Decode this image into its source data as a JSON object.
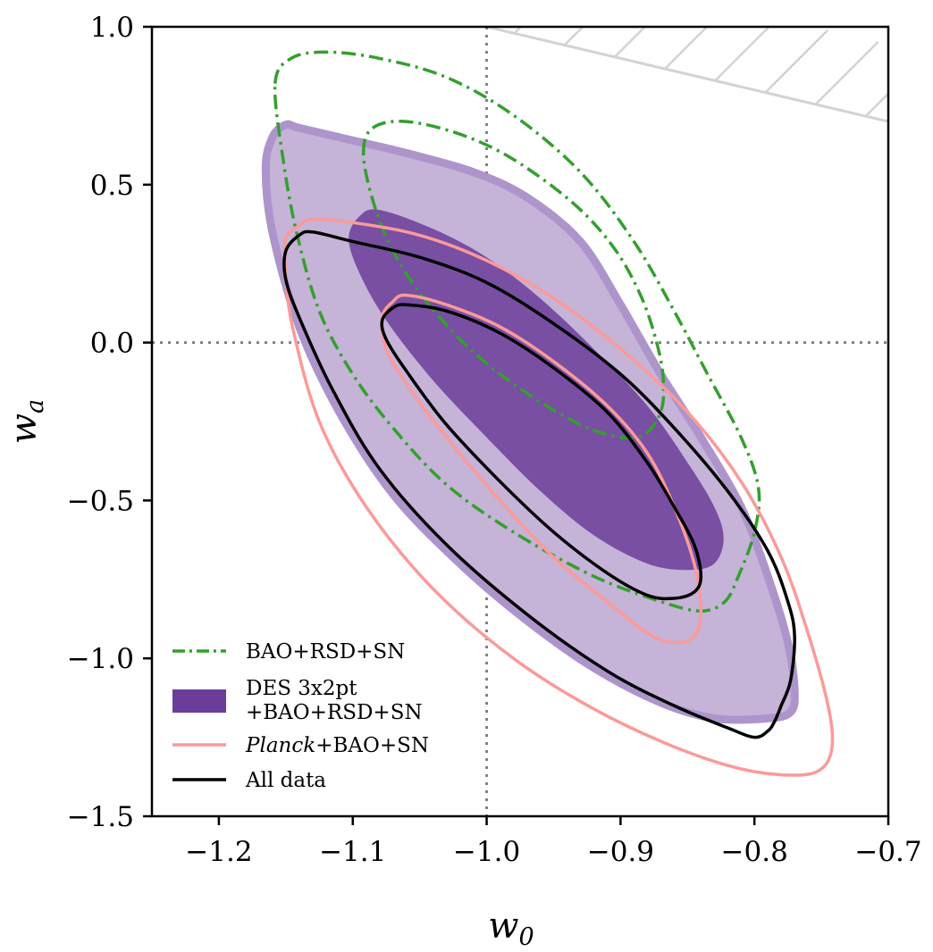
{
  "chart_data": {
    "type": "contour",
    "xlabel": "w0",
    "ylabel": "wa",
    "xlim": [
      -1.25,
      -0.7
    ],
    "ylim": [
      -1.5,
      1.0
    ],
    "xticks": [
      "−1.2",
      "−1.1",
      "−1.0",
      "−0.9",
      "−0.8",
      "−0.7"
    ],
    "yticks": [
      "1.0",
      "0.5",
      "0.0",
      "−0.5",
      "−1.0",
      "−1.5"
    ],
    "xtick_values": [
      -1.2,
      -1.1,
      -1.0,
      -0.9,
      -0.8,
      -0.7
    ],
    "ytick_values": [
      1.0,
      0.5,
      0.0,
      -0.5,
      -1.0,
      -1.5
    ],
    "reference_lines": {
      "w0": -1.0,
      "wa": 0.0,
      "style": "dotted",
      "color": "#808080"
    },
    "excluded_region": {
      "description": "hatched region, w0 + wa > 0",
      "line_from": [
        -1.0,
        1.0
      ],
      "line_to": [
        -0.7,
        0.7
      ],
      "color": "#d3d3d3"
    },
    "legend_position": "lower-left",
    "series": [
      {
        "name": "BAO+RSD+SN",
        "style": "dash-dot",
        "color": "#33a02c",
        "contours": {
          "outer_95": [
            [
              -1.158,
              0.82
            ],
            [
              -1.146,
              0.9
            ],
            [
              -1.12,
              0.92
            ],
            [
              -1.08,
              0.9
            ],
            [
              -1.03,
              0.84
            ],
            [
              -0.98,
              0.72
            ],
            [
              -0.93,
              0.54
            ],
            [
              -0.89,
              0.32
            ],
            [
              -0.86,
              0.1
            ],
            [
              -0.835,
              -0.1
            ],
            [
              -0.81,
              -0.3
            ],
            [
              -0.797,
              -0.46
            ],
            [
              -0.8,
              -0.6
            ],
            [
              -0.812,
              -0.74
            ],
            [
              -0.822,
              -0.82
            ],
            [
              -0.84,
              -0.85
            ],
            [
              -0.87,
              -0.82
            ],
            [
              -0.92,
              -0.74
            ],
            [
              -0.98,
              -0.6
            ],
            [
              -1.03,
              -0.45
            ],
            [
              -1.07,
              -0.27
            ],
            [
              -1.1,
              -0.1
            ],
            [
              -1.125,
              0.1
            ],
            [
              -1.142,
              0.35
            ],
            [
              -1.152,
              0.58
            ]
          ],
          "inner_68": [
            [
              -1.092,
              0.6
            ],
            [
              -1.085,
              0.68
            ],
            [
              -1.06,
              0.7
            ],
            [
              -1.02,
              0.66
            ],
            [
              -0.98,
              0.58
            ],
            [
              -0.935,
              0.44
            ],
            [
              -0.905,
              0.3
            ],
            [
              -0.885,
              0.15
            ],
            [
              -0.873,
              0.0
            ],
            [
              -0.868,
              -0.12
            ],
            [
              -0.87,
              -0.22
            ],
            [
              -0.882,
              -0.29
            ],
            [
              -0.9,
              -0.3
            ],
            [
              -0.93,
              -0.26
            ],
            [
              -0.97,
              -0.16
            ],
            [
              -1.01,
              -0.03
            ],
            [
              -1.045,
              0.13
            ],
            [
              -1.07,
              0.29
            ],
            [
              -1.085,
              0.45
            ]
          ]
        }
      },
      {
        "name": "DES 3x2pt +BAO+RSD+SN",
        "legend_lines": [
          "DES 3x2pt",
          "+BAO+RSD+SN"
        ],
        "style": "filled",
        "color": "#6a3d9a",
        "contours": {
          "outer_95": [
            [
              -1.16,
              0.65
            ],
            [
              -1.15,
              0.69
            ],
            [
              -1.14,
              0.68
            ],
            [
              -1.1,
              0.64
            ],
            [
              -1.06,
              0.6
            ],
            [
              -1.01,
              0.54
            ],
            [
              -0.97,
              0.46
            ],
            [
              -0.93,
              0.32
            ],
            [
              -0.9,
              0.12
            ],
            [
              -0.87,
              -0.1
            ],
            [
              -0.84,
              -0.3
            ],
            [
              -0.81,
              -0.52
            ],
            [
              -0.79,
              -0.74
            ],
            [
              -0.775,
              -0.95
            ],
            [
              -0.77,
              -1.1
            ],
            [
              -0.773,
              -1.17
            ],
            [
              -0.79,
              -1.19
            ],
            [
              -0.83,
              -1.19
            ],
            [
              -0.87,
              -1.14
            ],
            [
              -0.92,
              -1.03
            ],
            [
              -0.97,
              -0.88
            ],
            [
              -1.02,
              -0.7
            ],
            [
              -1.07,
              -0.48
            ],
            [
              -1.11,
              -0.22
            ],
            [
              -1.14,
              0.05
            ],
            [
              -1.16,
              0.35
            ],
            [
              -1.165,
              0.55
            ]
          ],
          "inner_68": [
            [
              -1.103,
              0.33
            ],
            [
              -1.095,
              0.4
            ],
            [
              -1.08,
              0.42
            ],
            [
              -1.04,
              0.36
            ],
            [
              -1.0,
              0.27
            ],
            [
              -0.96,
              0.14
            ],
            [
              -0.92,
              -0.02
            ],
            [
              -0.88,
              -0.2
            ],
            [
              -0.85,
              -0.38
            ],
            [
              -0.83,
              -0.52
            ],
            [
              -0.823,
              -0.62
            ],
            [
              -0.83,
              -0.7
            ],
            [
              -0.85,
              -0.72
            ],
            [
              -0.88,
              -0.7
            ],
            [
              -0.92,
              -0.61
            ],
            [
              -0.96,
              -0.47
            ],
            [
              -1.0,
              -0.3
            ],
            [
              -1.04,
              -0.12
            ],
            [
              -1.075,
              0.07
            ],
            [
              -1.095,
              0.22
            ]
          ]
        }
      },
      {
        "name": "Planck+BAO+SN",
        "legend_italic_part": "Planck",
        "legend_rest": "+BAO+SN",
        "style": "solid",
        "color": "#fb9a99",
        "contours": {
          "outer_95": [
            [
              -1.15,
              0.33
            ],
            [
              -1.14,
              0.37
            ],
            [
              -1.13,
              0.39
            ],
            [
              -1.1,
              0.38
            ],
            [
              -1.05,
              0.34
            ],
            [
              -1.0,
              0.26
            ],
            [
              -0.95,
              0.14
            ],
            [
              -0.9,
              -0.02
            ],
            [
              -0.85,
              -0.22
            ],
            [
              -0.81,
              -0.44
            ],
            [
              -0.78,
              -0.68
            ],
            [
              -0.76,
              -0.92
            ],
            [
              -0.745,
              -1.15
            ],
            [
              -0.742,
              -1.28
            ],
            [
              -0.75,
              -1.35
            ],
            [
              -0.77,
              -1.37
            ],
            [
              -0.81,
              -1.35
            ],
            [
              -0.86,
              -1.28
            ],
            [
              -0.92,
              -1.16
            ],
            [
              -0.98,
              -1.0
            ],
            [
              -1.04,
              -0.78
            ],
            [
              -1.09,
              -0.52
            ],
            [
              -1.125,
              -0.25
            ],
            [
              -1.145,
              0.05
            ],
            [
              -1.15,
              0.22
            ]
          ],
          "inner_68": [
            [
              -1.078,
              0.08
            ],
            [
              -1.07,
              0.13
            ],
            [
              -1.06,
              0.15
            ],
            [
              -1.03,
              0.12
            ],
            [
              -0.99,
              0.05
            ],
            [
              -0.95,
              -0.06
            ],
            [
              -0.91,
              -0.2
            ],
            [
              -0.88,
              -0.35
            ],
            [
              -0.86,
              -0.52
            ],
            [
              -0.845,
              -0.7
            ],
            [
              -0.84,
              -0.85
            ],
            [
              -0.845,
              -0.93
            ],
            [
              -0.86,
              -0.95
            ],
            [
              -0.88,
              -0.92
            ],
            [
              -0.91,
              -0.82
            ],
            [
              -0.95,
              -0.68
            ],
            [
              -0.99,
              -0.5
            ],
            [
              -1.03,
              -0.3
            ],
            [
              -1.06,
              -0.13
            ],
            [
              -1.075,
              -0.02
            ]
          ]
        }
      },
      {
        "name": "All data",
        "style": "solid",
        "color": "#000000",
        "contours": {
          "outer_95": [
            [
              -1.15,
              0.29
            ],
            [
              -1.14,
              0.34
            ],
            [
              -1.13,
              0.35
            ],
            [
              -1.1,
              0.32
            ],
            [
              -1.05,
              0.27
            ],
            [
              -1.0,
              0.19
            ],
            [
              -0.95,
              0.06
            ],
            [
              -0.9,
              -0.1
            ],
            [
              -0.86,
              -0.27
            ],
            [
              -0.82,
              -0.47
            ],
            [
              -0.79,
              -0.66
            ],
            [
              -0.775,
              -0.82
            ],
            [
              -0.77,
              -0.93
            ],
            [
              -0.773,
              -1.07
            ],
            [
              -0.78,
              -1.15
            ],
            [
              -0.785,
              -1.2
            ],
            [
              -0.79,
              -1.23
            ],
            [
              -0.8,
              -1.25
            ],
            [
              -0.82,
              -1.22
            ],
            [
              -0.86,
              -1.15
            ],
            [
              -0.91,
              -1.04
            ],
            [
              -0.97,
              -0.86
            ],
            [
              -1.03,
              -0.64
            ],
            [
              -1.08,
              -0.4
            ],
            [
              -1.115,
              -0.15
            ],
            [
              -1.14,
              0.08
            ],
            [
              -1.15,
              0.2
            ]
          ],
          "inner_68": [
            [
              -1.078,
              0.07
            ],
            [
              -1.07,
              0.11
            ],
            [
              -1.06,
              0.12
            ],
            [
              -1.03,
              0.1
            ],
            [
              -0.99,
              0.03
            ],
            [
              -0.95,
              -0.08
            ],
            [
              -0.91,
              -0.22
            ],
            [
              -0.88,
              -0.38
            ],
            [
              -0.86,
              -0.52
            ],
            [
              -0.845,
              -0.64
            ],
            [
              -0.84,
              -0.74
            ],
            [
              -0.845,
              -0.79
            ],
            [
              -0.86,
              -0.81
            ],
            [
              -0.88,
              -0.8
            ],
            [
              -0.91,
              -0.73
            ],
            [
              -0.95,
              -0.6
            ],
            [
              -0.99,
              -0.44
            ],
            [
              -1.03,
              -0.26
            ],
            [
              -1.06,
              -0.09
            ],
            [
              -1.075,
              0.01
            ]
          ]
        }
      }
    ]
  }
}
